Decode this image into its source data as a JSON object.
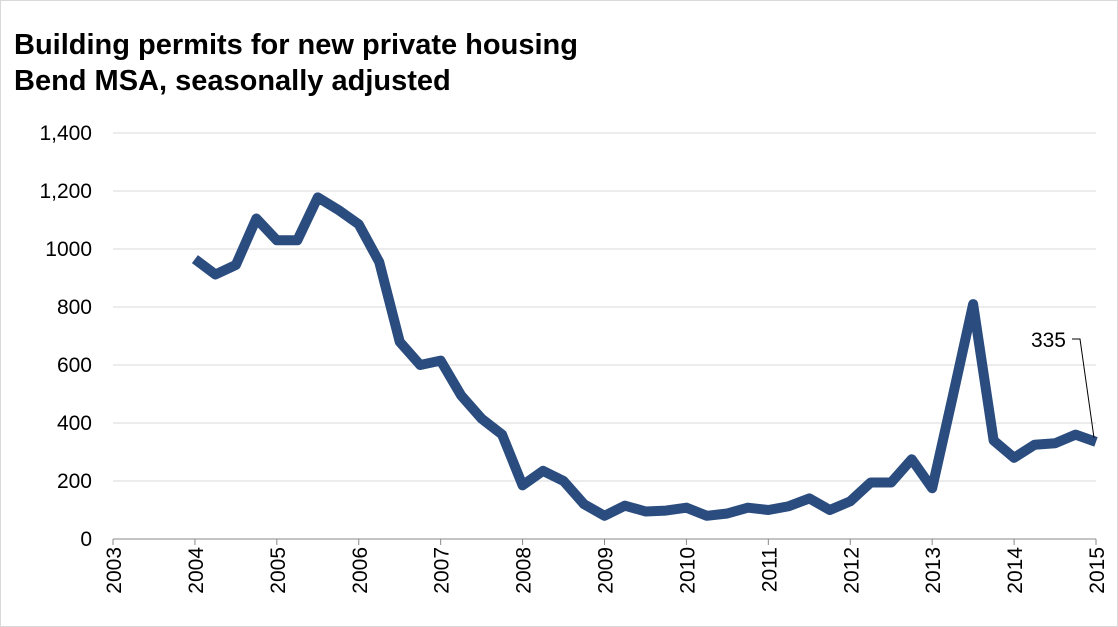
{
  "chart_data": {
    "type": "line",
    "title": [
      "Building permits for new private housing",
      "Bend MSA, seasonally adjusted"
    ],
    "annotation": "335",
    "x": [
      2004,
      2004.25,
      2004.5,
      2004.75,
      2005,
      2005.25,
      2005.5,
      2005.75,
      2006,
      2006.25,
      2006.5,
      2006.75,
      2007,
      2007.25,
      2007.5,
      2007.75,
      2008,
      2008.25,
      2008.5,
      2008.75,
      2009,
      2009.25,
      2009.5,
      2009.75,
      2010,
      2010.25,
      2010.5,
      2010.75,
      2011,
      2011.25,
      2011.5,
      2011.75,
      2012,
      2012.25,
      2012.5,
      2012.75,
      2013,
      2013.25,
      2013.5,
      2013.75,
      2014,
      2014.25,
      2014.5,
      2014.75,
      2015
    ],
    "series": [
      {
        "name": "Building permits",
        "color": "#2b4c7e",
        "values": [
          965,
          912,
          945,
          1105,
          1030,
          1030,
          1178,
          1135,
          1085,
          955,
          680,
          600,
          615,
          495,
          415,
          360,
          185,
          235,
          200,
          120,
          80,
          115,
          95,
          98,
          108,
          80,
          88,
          108,
          100,
          113,
          140,
          100,
          130,
          195,
          195,
          275,
          175,
          490,
          810,
          340,
          280,
          325,
          330,
          360,
          335
        ]
      }
    ],
    "xlim": [
      2003,
      2015
    ],
    "xticks": [
      2003,
      2004,
      2005,
      2006,
      2007,
      2008,
      2009,
      2010,
      2011,
      2012,
      2013,
      2014,
      2015
    ],
    "ylim": [
      0,
      1400
    ],
    "yticks": [
      0,
      200,
      400,
      600,
      800,
      1000,
      {
        "value": 1200,
        "label": "1,200"
      },
      {
        "value": 1400,
        "label": "1,400"
      }
    ],
    "grid": true
  }
}
